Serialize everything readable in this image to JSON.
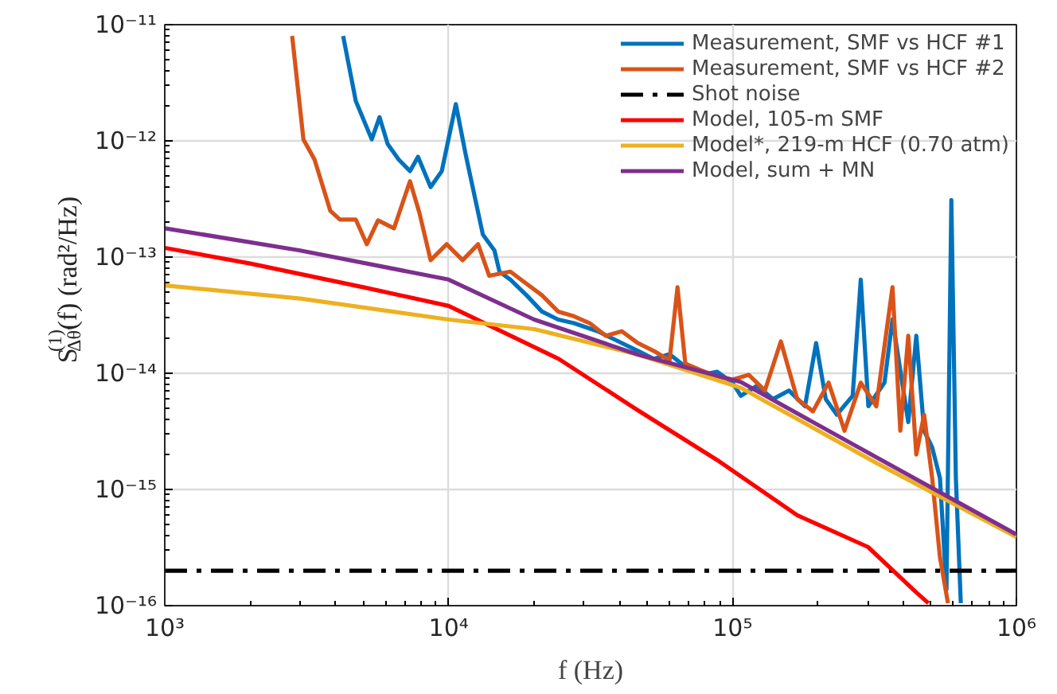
{
  "chart_data": {
    "type": "line",
    "xlabel": "f (Hz)",
    "ylabel": "S$^{(1)}$$_{Δθ'}$(f) (rad²/Hz)",
    "log": "xy",
    "grid": true,
    "legend": "top right",
    "xlim": [
      1000,
      1000000
    ],
    "ylim": [
      1e-16,
      1e-11
    ],
    "xticks": [
      {
        "value": 1000,
        "label": "10³"
      },
      {
        "value": 10000,
        "label": "10⁴"
      },
      {
        "value": 100000,
        "label": "10⁵"
      },
      {
        "value": 1000000,
        "label": "10⁶"
      }
    ],
    "yticks": [
      {
        "value": 1e-16,
        "label": "10⁻¹⁶"
      },
      {
        "value": 1e-15,
        "label": "10⁻¹⁵"
      },
      {
        "value": 1e-14,
        "label": "10⁻¹⁴"
      },
      {
        "value": 1e-13,
        "label": "10⁻¹³"
      },
      {
        "value": 1e-12,
        "label": "10⁻¹²"
      },
      {
        "value": 1e-11,
        "label": "10⁻¹¹"
      }
    ],
    "series": [
      {
        "name": "Measurement, SMF vs HCF #1",
        "color": "#0072bd",
        "x": [
          4250,
          4710,
          5360,
          5710,
          6100,
          6670,
          7310,
          7800,
          8640,
          9460,
          10600,
          11500,
          13200,
          14500,
          15100,
          16500,
          18800,
          21300,
          24300,
          27600,
          33500,
          40700,
          46400,
          52700,
          60000,
          68200,
          77600,
          88300,
          100000,
          107000,
          122000,
          139000,
          158000,
          180000,
          197000,
          213000,
          233000,
          265000,
          283000,
          301000,
          343000,
          366000,
          416000,
          444000,
          473000,
          505000,
          538000,
          567000,
          590000,
          612000,
          637000
        ],
        "values": [
          8e-12,
          2.2e-12,
          1.03e-12,
          1.6e-12,
          9.4e-13,
          6.9e-13,
          5.5e-13,
          7.3e-13,
          4e-13,
          5.5e-13,
          2.07e-12,
          7.5e-13,
          1.56e-13,
          1.14e-13,
          7.5e-14,
          6.4e-14,
          4.7e-14,
          3.4e-14,
          2.9e-14,
          2.7e-14,
          2.3e-14,
          1.82e-14,
          1.56e-14,
          1.33e-14,
          1.46e-14,
          1.14e-14,
          9.7e-15,
          1.03e-14,
          8.3e-15,
          6.4e-15,
          7.8e-15,
          6e-15,
          7.1e-15,
          5.2e-15,
          1.82e-14,
          6e-15,
          4.4e-15,
          6.4e-15,
          6.4e-14,
          5.2e-15,
          8.3e-15,
          2.9e-14,
          3.8e-15,
          2.1e-14,
          3.2e-15,
          2.3e-15,
          1.25e-15,
          1.37e-16,
          3.1e-13,
          1.25e-15,
          1.05e-16
        ]
      },
      {
        "name": "Measurement, SMF vs HCF #2",
        "color": "#d95319",
        "x": [
          2810,
          3080,
          3370,
          3830,
          4140,
          4710,
          5150,
          5640,
          6420,
          7310,
          7890,
          8640,
          9840,
          11200,
          12700,
          13900,
          16500,
          18800,
          21300,
          24300,
          27600,
          31400,
          35800,
          40700,
          46400,
          52700,
          60000,
          64000,
          68200,
          77600,
          88300,
          100000,
          114000,
          130000,
          148000,
          169000,
          192000,
          218000,
          248000,
          283000,
          321000,
          366000,
          390000,
          416000,
          444000,
          473000,
          505000,
          538000,
          574000
        ],
        "values": [
          8e-12,
          1.03e-12,
          6.9e-13,
          2.5e-13,
          2.1e-13,
          2.1e-13,
          1.29e-13,
          2.07e-13,
          1.77e-13,
          4.5e-13,
          2.4e-13,
          9.4e-14,
          1.29e-13,
          9.4e-14,
          1.29e-13,
          6.9e-14,
          7.5e-14,
          5.9e-14,
          4.7e-14,
          3.4e-14,
          3.1e-14,
          2.7e-14,
          2.1e-14,
          2.3e-14,
          1.82e-14,
          1.56e-14,
          1.29e-14,
          5.5e-14,
          1.21e-14,
          1.06e-14,
          9.4e-15,
          8.8e-15,
          9.7e-15,
          7.1e-15,
          1.88e-14,
          6e-15,
          4.7e-15,
          8.3e-15,
          3.2e-15,
          8.3e-15,
          5.2e-15,
          5.5e-14,
          3.2e-15,
          2.1e-14,
          2e-15,
          4.4e-15,
          1.25e-15,
          2.6e-16,
          1.05e-16
        ]
      },
      {
        "name": "Shot noise",
        "color": "#000000",
        "line_style": "dashdot",
        "x": [
          1000,
          1000000
        ],
        "values": [
          2e-16,
          2e-16
        ]
      },
      {
        "name": "Model, 105-m SMF",
        "color": "#ff0000",
        "x": [
          1000,
          2000,
          5000,
          10000,
          24400,
          46400,
          88000,
          169000,
          300000,
          444000,
          490000
        ],
        "values": [
          1.2e-13,
          8.8e-14,
          5.5e-14,
          3.8e-14,
          1.33e-14,
          4.8e-15,
          1.8e-15,
          6e-16,
          3.2e-16,
          1.3e-16,
          1.05e-16
        ]
      },
      {
        "name": "Model*, 219-m HCF (0.70 atm)",
        "color": "#edb120",
        "x": [
          1000,
          3000,
          10000,
          20000,
          46400,
          107000,
          320000,
          1000000
        ],
        "values": [
          5.7e-14,
          4.4e-14,
          2.9e-14,
          2.4e-14,
          1.45e-14,
          7.5e-15,
          1.7e-15,
          3.9e-16
        ]
      },
      {
        "name": "Model, sum + MN",
        "color": "#7e2f8e",
        "x": [
          1000,
          3000,
          10000,
          20000,
          46400,
          107000,
          320000,
          1000000
        ],
        "values": [
          1.77e-13,
          1.14e-13,
          6.4e-14,
          2.9e-14,
          1.45e-14,
          8.4e-15,
          1.9e-15,
          4.1e-16
        ]
      }
    ]
  }
}
